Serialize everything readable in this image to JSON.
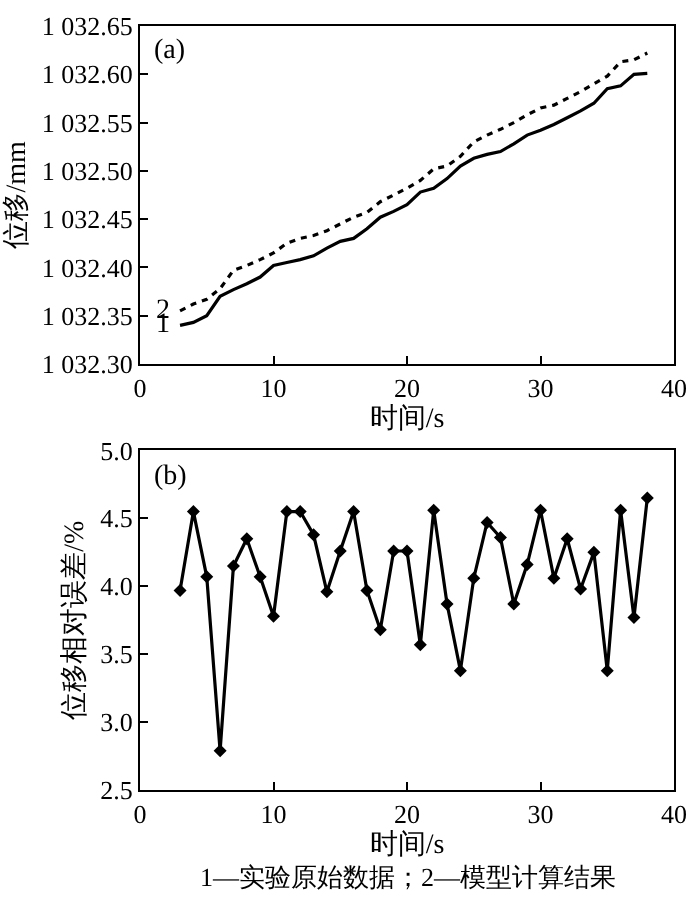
{
  "chart_data": [
    {
      "type": "line",
      "xlabel": "时间/s",
      "ylabel": "位移/mm",
      "annotations": [
        "(a)"
      ],
      "x": [
        3,
        4,
        5,
        6,
        7,
        8,
        9,
        10,
        11,
        12,
        13,
        14,
        15,
        16,
        17,
        18,
        19,
        20,
        21,
        22,
        23,
        24,
        25,
        26,
        27,
        28,
        29,
        30,
        31,
        32,
        33,
        34,
        35,
        36,
        37,
        38
      ],
      "series": [
        {
          "name": "1",
          "color": "#000000",
          "line_style": "solid",
          "values": [
            1032.34,
            1032.343,
            1032.35,
            1032.37,
            1032.377,
            1032.383,
            1032.39,
            1032.402,
            1032.405,
            1032.408,
            1032.412,
            1032.42,
            1032.427,
            1032.43,
            1032.44,
            1032.452,
            1032.458,
            1032.465,
            1032.478,
            1032.482,
            1032.492,
            1032.505,
            1032.513,
            1032.517,
            1032.52,
            1032.528,
            1032.537,
            1032.542,
            1032.548,
            1032.555,
            1032.562,
            1032.57,
            1032.585,
            1032.588,
            1032.6,
            1032.601
          ]
        },
        {
          "name": "2",
          "color": "#000000",
          "line_style": "dotted",
          "values": [
            1032.355,
            1032.362,
            1032.367,
            1032.378,
            1032.397,
            1032.402,
            1032.408,
            1032.415,
            1032.425,
            1032.43,
            1032.433,
            1032.438,
            1032.445,
            1032.452,
            1032.457,
            1032.468,
            1032.475,
            1032.482,
            1032.49,
            1032.502,
            1032.505,
            1032.515,
            1032.53,
            1032.537,
            1032.543,
            1032.55,
            1032.558,
            1032.565,
            1032.568,
            1032.575,
            1032.582,
            1032.59,
            1032.598,
            1032.613,
            1032.615,
            1032.622
          ]
        }
      ],
      "xlim": [
        0,
        40
      ],
      "xticks": [
        0,
        10,
        20,
        30,
        40
      ],
      "ylim": [
        1032.3,
        1032.65
      ],
      "yticks": [
        {
          "value": 1032.3,
          "label": "1 032.30"
        },
        {
          "value": 1032.35,
          "label": "1 032.35"
        },
        {
          "value": 1032.4,
          "label": "1 032.40"
        },
        {
          "value": 1032.45,
          "label": "1 032.45"
        },
        {
          "value": 1032.5,
          "label": "1 032.50"
        },
        {
          "value": 1032.55,
          "label": "1 032.55"
        },
        {
          "value": 1032.6,
          "label": "1 032.60"
        },
        {
          "value": 1032.65,
          "label": "1 032.65"
        }
      ],
      "legend": false,
      "marker": "none"
    },
    {
      "type": "line",
      "xlabel": "时间/s",
      "ylabel": "位移相对误差/%",
      "annotations": [
        "(b)",
        "1—实验原始数据；2—模型计算结果"
      ],
      "x": [
        3,
        4,
        5,
        6,
        7,
        8,
        9,
        10,
        11,
        12,
        13,
        14,
        15,
        16,
        17,
        18,
        19,
        20,
        21,
        22,
        23,
        24,
        25,
        26,
        27,
        28,
        29,
        30,
        31,
        32,
        33,
        34,
        35,
        36,
        37,
        38
      ],
      "series": [
        {
          "color": "#000000",
          "values": [
            3.97,
            4.55,
            4.07,
            2.79,
            4.15,
            4.35,
            4.07,
            3.78,
            4.55,
            4.55,
            4.38,
            3.96,
            4.26,
            4.55,
            3.97,
            3.68,
            4.26,
            4.26,
            3.57,
            4.56,
            3.87,
            3.38,
            4.06,
            4.47,
            4.36,
            3.87,
            4.16,
            4.56,
            4.06,
            4.35,
            3.98,
            4.25,
            3.38,
            4.56,
            3.77,
            4.65
          ]
        }
      ],
      "xlim": [
        0,
        40
      ],
      "xticks": [
        0,
        10,
        20,
        30,
        40
      ],
      "ylim": [
        2.5,
        5.0
      ],
      "yticks": [
        {
          "value": 2.5,
          "label": "2.5"
        },
        {
          "value": 3.0,
          "label": "3.0"
        },
        {
          "value": 3.5,
          "label": "3.5"
        },
        {
          "value": 4.0,
          "label": "4.0"
        },
        {
          "value": 4.5,
          "label": "4.5"
        },
        {
          "value": 5.0,
          "label": "5.0"
        }
      ],
      "legend": false,
      "marker": "diamond",
      "line_style": "solid"
    }
  ]
}
